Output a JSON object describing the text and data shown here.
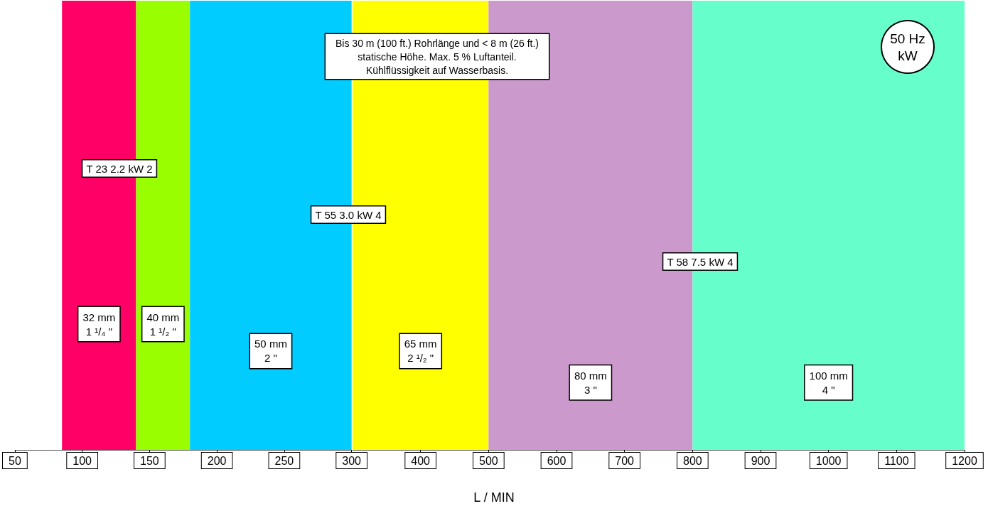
{
  "chart_data": [
    {
      "type": "bar",
      "orientation": "horizontal",
      "categories": [
        null
      ],
      "xlim": [
        50,
        300
      ],
      "xticks": [
        50,
        100,
        150,
        200,
        250,
        300
      ],
      "series": [
        {
          "name": "32 mm\n1 ¹/₄ \"",
          "color": "#ff0066",
          "base": [
            85
          ],
          "values": [
            55
          ]
        },
        {
          "name": "40 mm\n1 ¹/₂ \"",
          "color": "#99ff00",
          "base": [
            140
          ],
          "values": [
            40
          ]
        },
        {
          "name": "50 mm\n2 \"",
          "color": "#00ccff",
          "base": [
            180
          ],
          "values": [
            120
          ]
        }
      ],
      "annotations": [
        "T 23 2.2 kW 2"
      ]
    },
    {
      "type": "bar",
      "orientation": "horizontal",
      "categories": [
        null
      ],
      "xlabel": "L / MIN",
      "xlim": [
        300,
        1200
      ],
      "xticks": [
        400,
        500,
        600,
        700,
        800,
        900,
        1000,
        1100,
        1200
      ],
      "series": [
        {
          "name": "65 mm\n2 ¹/₂ \"",
          "color": "#ffff00",
          "base": [
            300
          ],
          "values": [
            200
          ]
        },
        {
          "name": "80 mm\n3 \"",
          "color": "#cc99cc",
          "base": [
            500
          ],
          "values": [
            300
          ]
        },
        {
          "name": "100 mm\n4 \"",
          "color": "#66ffcc",
          "base": [
            800
          ],
          "values": [
            400
          ]
        }
      ],
      "annotations": [
        "Bis 30 m (100 ft.) Rohrlänge und < 8 m (26 ft.)\nstatische Höhe. Max. 5 % Luftanteil.\nKühlflüssigkeit auf Wasserbasis.",
        "50 Hz\nkW",
        "T 55 3.0 kW 4",
        "T 58 7.5 kW 4"
      ]
    }
  ]
}
